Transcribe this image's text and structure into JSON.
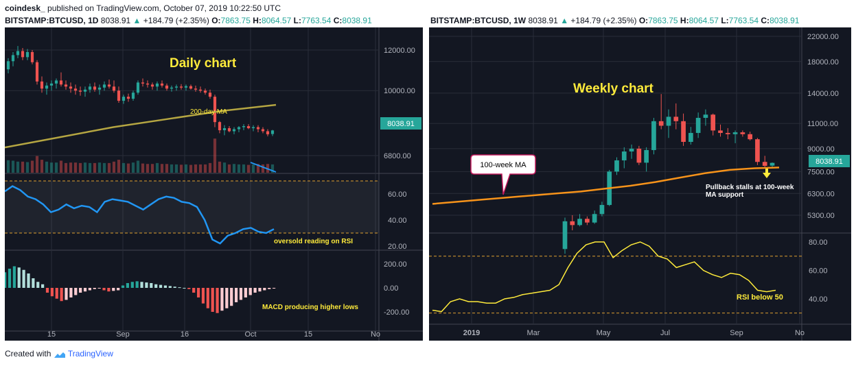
{
  "header": {
    "brand": "coindesk_",
    "published": "published on TradingView.com, October 07, 2019 10:22:50 UTC"
  },
  "left": {
    "symbol": "BITSTAMP:BTCUSD, 1D",
    "price": "8038.91",
    "change": "+184.79 (+2.35%)",
    "o_label": "O:",
    "o": "7863.75",
    "h_label": "H:",
    "h": "8064.57",
    "l_label": "L:",
    "l": "7763.54",
    "c_label": "C:",
    "c": "8038.91",
    "title_text": "Daily chart",
    "ma_label": "200-day MA",
    "rsi_note": "oversold reading on RSI",
    "macd_note": "MACD producing higher lows",
    "price_tag": "8038.91"
  },
  "right": {
    "symbol": "BITSTAMP:BTCUSD, 1W",
    "price": "8038.91",
    "change": "+184.79 (+2.35%)",
    "o_label": "O:",
    "o": "7863.75",
    "h_label": "H:",
    "h": "8064.57",
    "l_label": "L:",
    "l": "7763.54",
    "c_label": "C:",
    "c": "8038.91",
    "title_text": "Weekly chart",
    "ma_callout": "100-week MA",
    "pullback_note_1": "Pullback stalls at 100-week",
    "pullback_note_2": "MA support",
    "rsi_note": "RSI below 50",
    "price_tag": "8038.91"
  },
  "footer": {
    "created": "Created with",
    "tv": "TradingView"
  },
  "colors": {
    "bg": "#131722",
    "up": "#26a69a",
    "down": "#ef5350",
    "annot": "#ffeb3b",
    "ma": "#b5a642",
    "rsi_daily": "#2196f3",
    "ma_weekly": "#f7931a",
    "rsi_weekly": "#ffeb3b",
    "grid": "#2a2e39",
    "axis_text": "#b2b5be",
    "rsi_band": "#e0a030",
    "price_tag_bg": "#26a69a"
  },
  "chart_data": [
    {
      "type": "candlestick",
      "title": "Daily chart",
      "price_axis_ticks": [
        "12000.00",
        "10000.00",
        "8038.91",
        "6800.00"
      ],
      "x_tick_labels": [
        "15",
        "Sep",
        "16",
        "Oct",
        "15",
        "No"
      ],
      "ohlc": [
        [
          11050,
          11600,
          10850,
          11450
        ],
        [
          11450,
          11900,
          11200,
          11750
        ],
        [
          11750,
          12200,
          11600,
          11950
        ],
        [
          11950,
          12100,
          11500,
          11650
        ],
        [
          11650,
          12050,
          11500,
          11900
        ],
        [
          11900,
          12000,
          11300,
          11400
        ],
        [
          11400,
          11500,
          10300,
          10450
        ],
        [
          10450,
          10700,
          9900,
          10100
        ],
        [
          10100,
          10400,
          9800,
          10250
        ],
        [
          10250,
          10500,
          10000,
          10350
        ],
        [
          10350,
          10600,
          10100,
          10500
        ],
        [
          10500,
          10900,
          10200,
          10300
        ],
        [
          10300,
          10500,
          10050,
          10200
        ],
        [
          10200,
          10400,
          9900,
          10100
        ],
        [
          10100,
          10300,
          9800,
          10000
        ],
        [
          10000,
          10200,
          9750,
          9950
        ],
        [
          9950,
          10200,
          9700,
          10050
        ],
        [
          10050,
          10350,
          9900,
          10200
        ],
        [
          10200,
          10400,
          9950,
          10050
        ],
        [
          10050,
          10300,
          9800,
          10150
        ],
        [
          10150,
          10450,
          10000,
          10300
        ],
        [
          10300,
          10550,
          10100,
          10200
        ],
        [
          10200,
          10500,
          9900,
          10000
        ],
        [
          10000,
          10200,
          9400,
          9500
        ],
        [
          9500,
          9800,
          9350,
          9700
        ],
        [
          9700,
          9850,
          9450,
          9600
        ],
        [
          9600,
          10000,
          9500,
          9900
        ],
        [
          9900,
          10500,
          9800,
          10400
        ],
        [
          10400,
          10600,
          10200,
          10350
        ],
        [
          10350,
          10500,
          10150,
          10300
        ],
        [
          10300,
          10400,
          10050,
          10200
        ],
        [
          10200,
          10450,
          10000,
          10350
        ],
        [
          10350,
          10500,
          10150,
          10250
        ],
        [
          10250,
          10350,
          10000,
          10100
        ],
        [
          10100,
          10250,
          9950,
          10150
        ],
        [
          10150,
          10300,
          10000,
          10200
        ],
        [
          10200,
          10320,
          10050,
          10150
        ],
        [
          10150,
          10300,
          10000,
          10220
        ],
        [
          10220,
          10300,
          10050,
          10100
        ],
        [
          10100,
          10250,
          9950,
          10050
        ],
        [
          10050,
          10200,
          9900,
          10000
        ],
        [
          10000,
          10100,
          9800,
          9900
        ],
        [
          9900,
          10050,
          9600,
          9700
        ],
        [
          9700,
          9800,
          8200,
          8450
        ],
        [
          8450,
          8500,
          7900,
          8050
        ],
        [
          8050,
          8300,
          7800,
          8150
        ],
        [
          8150,
          8250,
          7950,
          8000
        ],
        [
          8000,
          8200,
          7850,
          8100
        ],
        [
          8100,
          8250,
          7950,
          8200
        ],
        [
          8200,
          8350,
          8050,
          8250
        ],
        [
          8250,
          8350,
          8100,
          8150
        ],
        [
          8150,
          8300,
          8000,
          8200
        ],
        [
          8200,
          8300,
          7950,
          8100
        ],
        [
          8100,
          8200,
          7900,
          8000
        ],
        [
          8000,
          8100,
          7750,
          7850
        ],
        [
          7863.75,
          8064.57,
          7763.54,
          8038.91
        ]
      ],
      "ma200": [
        7200,
        7700,
        8200,
        8600,
        9000,
        9300
      ],
      "rsi": [
        62,
        66,
        63,
        58,
        56,
        52,
        46,
        48,
        52,
        49,
        51,
        50,
        46,
        54,
        56,
        55,
        54,
        51,
        48,
        52,
        56,
        58,
        57,
        54,
        53,
        50,
        40,
        25,
        22,
        28,
        30,
        33,
        34,
        31,
        30,
        33
      ],
      "rsi_levels": [
        70,
        30
      ],
      "rsi_ticks": [
        "60.00",
        "40.00",
        "20.00"
      ],
      "macd_ticks": [
        "200.00",
        "0.00",
        "-200.00"
      ],
      "macd_hist": [
        130,
        160,
        180,
        170,
        150,
        120,
        80,
        50,
        30,
        -40,
        -70,
        -90,
        -110,
        -100,
        -80,
        -60,
        -40,
        -30,
        -20,
        -10,
        -5,
        -20,
        -30,
        -25,
        -20,
        20,
        40,
        50,
        55,
        50,
        45,
        40,
        30,
        25,
        20,
        15,
        10,
        5,
        0,
        -10,
        -40,
        -80,
        -130,
        -170,
        -200,
        -210,
        -190,
        -170,
        -150,
        -120,
        -100,
        -80,
        -60,
        -40,
        -30,
        -20,
        -10,
        -5
      ]
    },
    {
      "type": "candlestick",
      "title": "Weekly chart",
      "price_axis_ticks": [
        "22000.00",
        "18000.00",
        "14000.00",
        "11000.00",
        "9000.00",
        "8038.91",
        "7500.00",
        "6300.00",
        "5300.00"
      ],
      "x_tick_labels": [
        "2019",
        "Mar",
        "May",
        "Jul",
        "Sep",
        "No"
      ],
      "ohlc": [
        [
          4050,
          5200,
          3900,
          5050
        ],
        [
          5050,
          5300,
          4700,
          4900
        ],
        [
          4900,
          5350,
          4850,
          5150
        ],
        [
          5150,
          5250,
          4900,
          5000
        ],
        [
          5000,
          5500,
          4950,
          5350
        ],
        [
          5350,
          5900,
          5250,
          5750
        ],
        [
          5750,
          7600,
          5700,
          7500
        ],
        [
          7500,
          8400,
          7300,
          8200
        ],
        [
          8200,
          9100,
          7700,
          8800
        ],
        [
          8800,
          9300,
          8300,
          9000
        ],
        [
          9000,
          9200,
          7900,
          8050
        ],
        [
          8050,
          9100,
          7500,
          8900
        ],
        [
          8900,
          11500,
          8600,
          11200
        ],
        [
          11200,
          13900,
          10500,
          10800
        ],
        [
          10800,
          12300,
          9800,
          11600
        ],
        [
          11600,
          12900,
          10500,
          11200
        ],
        [
          11200,
          11900,
          9200,
          9500
        ],
        [
          9500,
          10700,
          9300,
          10200
        ],
        [
          10200,
          12000,
          9800,
          11500
        ],
        [
          11500,
          12300,
          10800,
          11800
        ],
        [
          11800,
          11900,
          10000,
          10400
        ],
        [
          10400,
          10900,
          9900,
          10200
        ],
        [
          10200,
          10600,
          9700,
          10100
        ],
        [
          10100,
          10400,
          9400,
          10250
        ],
        [
          10250,
          10400,
          9900,
          10100
        ],
        [
          10100,
          10300,
          9600,
          9700
        ],
        [
          9700,
          9800,
          7900,
          8100
        ],
        [
          8100,
          8500,
          7700,
          7850
        ],
        [
          7863.75,
          8064.57,
          7763.54,
          8038.91
        ]
      ],
      "ma100": [
        5800,
        5900,
        6000,
        6100,
        6200,
        6300,
        6400,
        6550,
        6700,
        6900,
        7150,
        7400,
        7600,
        7700,
        7750
      ],
      "rsi": [
        32,
        31,
        38,
        40,
        38,
        38,
        37,
        37,
        40,
        41,
        43,
        44,
        45,
        46,
        50,
        62,
        72,
        78,
        80,
        80,
        69,
        74,
        78,
        80,
        77,
        70,
        68,
        62,
        64,
        66,
        60,
        57,
        55,
        58,
        57,
        53,
        46,
        45,
        46
      ],
      "rsi_levels": [
        70,
        30
      ],
      "rsi_ticks": [
        "80.00",
        "60.00",
        "40.00"
      ]
    }
  ]
}
